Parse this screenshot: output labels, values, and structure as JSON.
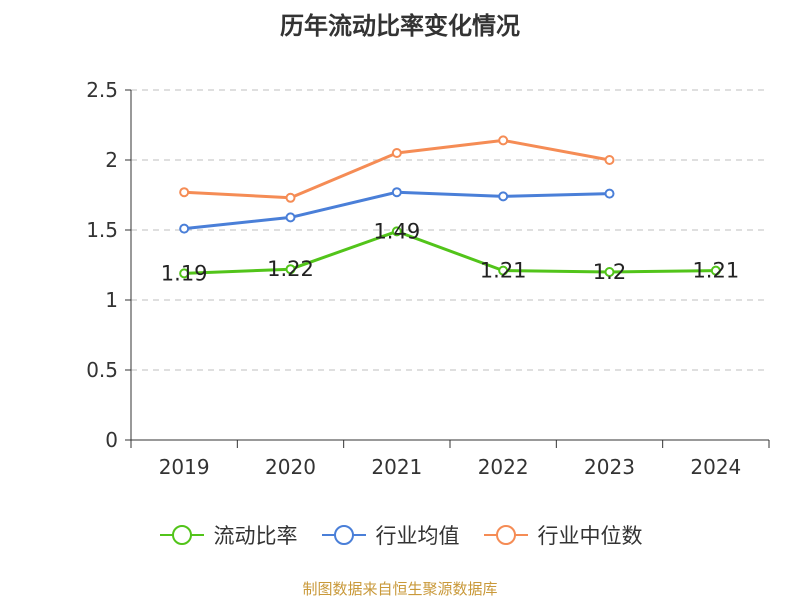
{
  "chart_data": {
    "type": "line",
    "title": "历年流动比率变化情况",
    "categories": [
      "2019",
      "2020",
      "2021",
      "2022",
      "2023",
      "2024"
    ],
    "ylim": [
      0,
      2.5
    ],
    "yticks": [
      "0",
      "0.5",
      "1",
      "1.5",
      "2",
      "2.5"
    ],
    "grid": true,
    "legend_position": "bottom",
    "series": [
      {
        "name": "流动比率",
        "color": "#52c41a",
        "values": [
          1.19,
          1.22,
          1.49,
          1.21,
          1.2,
          1.21
        ],
        "labels": [
          "1.19",
          "1.22",
          "1.49",
          "1.21",
          "1.2",
          "1.21"
        ]
      },
      {
        "name": "行业均值",
        "color": "#4a7fd8",
        "values": [
          1.51,
          1.59,
          1.77,
          1.74,
          1.76,
          null
        ]
      },
      {
        "name": "行业中位数",
        "color": "#f58c55",
        "values": [
          1.77,
          1.73,
          2.05,
          2.14,
          2.0,
          null
        ]
      }
    ]
  },
  "source": "制图数据来自恒生聚源数据库"
}
